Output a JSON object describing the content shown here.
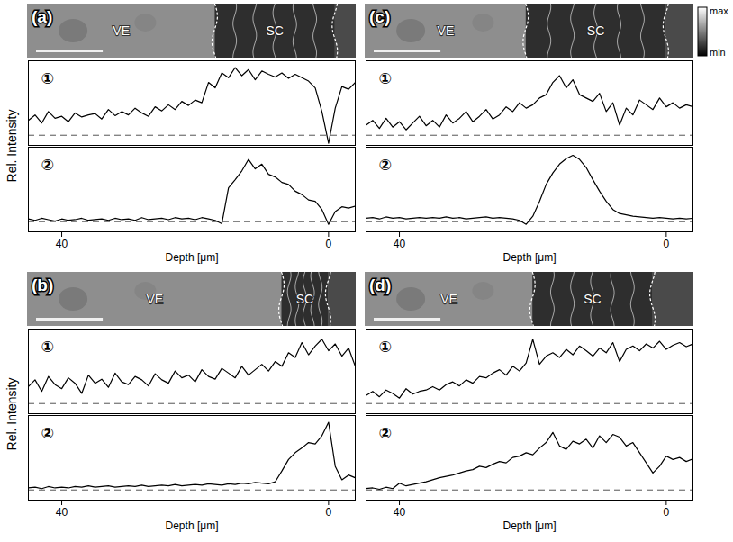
{
  "chart_data": [
    {
      "type": "line",
      "title": "(a)",
      "ylabel": "Rel. Intensity",
      "xlabel": "Depth [μm]",
      "color": "#000000",
      "xlim": [
        45,
        -4
      ],
      "xticks": [
        40,
        0
      ],
      "ylim": [
        -0.15,
        1.1
      ],
      "tick_labels": "x",
      "baseline": 0,
      "regions": [
        {
          "name": "VE"
        },
        {
          "name": "SC",
          "range": [
            17,
            -1
          ]
        }
      ],
      "scale_bar": 10,
      "x": [
        45,
        44,
        43,
        42,
        41,
        40,
        39,
        38,
        37,
        36,
        35,
        34,
        33,
        32,
        31,
        30,
        29,
        28,
        27,
        26,
        25,
        24,
        23,
        22,
        21,
        20,
        19,
        18,
        17,
        16,
        15,
        14,
        13,
        12,
        11,
        10,
        9,
        8,
        7,
        6,
        5,
        4,
        3,
        2,
        1,
        0,
        -1,
        -2,
        -3,
        -4
      ],
      "series": [
        {
          "name": "①",
          "values": [
            0.22,
            0.3,
            0.18,
            0.35,
            0.25,
            0.28,
            0.2,
            0.33,
            0.27,
            0.3,
            0.32,
            0.24,
            0.38,
            0.29,
            0.35,
            0.3,
            0.4,
            0.33,
            0.28,
            0.42,
            0.36,
            0.45,
            0.38,
            0.5,
            0.44,
            0.52,
            0.48,
            0.78,
            0.7,
            0.92,
            0.85,
            1.0,
            0.88,
            0.97,
            0.82,
            0.95,
            0.9,
            0.86,
            0.92,
            0.84,
            0.9,
            0.85,
            0.8,
            0.7,
            0.35,
            -0.12,
            0.4,
            0.72,
            0.68,
            0.78
          ]
        },
        {
          "name": "②",
          "values": [
            0.04,
            0.02,
            0.05,
            0.03,
            0.01,
            0.04,
            0.02,
            0.03,
            0.05,
            0.02,
            0.03,
            0.04,
            0.02,
            0.05,
            0.03,
            0.04,
            0.02,
            0.06,
            0.03,
            0.04,
            0.05,
            0.03,
            0.06,
            0.04,
            0.05,
            0.03,
            0.06,
            0.04,
            0.02,
            -0.03,
            0.5,
            0.62,
            0.75,
            0.92,
            0.78,
            0.85,
            0.7,
            0.66,
            0.58,
            0.55,
            0.45,
            0.4,
            0.32,
            0.3,
            0.18,
            -0.04,
            0.15,
            0.22,
            0.2,
            0.23
          ]
        }
      ]
    },
    {
      "type": "line",
      "title": "(c)",
      "xlabel": "Depth [μm]",
      "color": "#000000",
      "xlim": [
        45,
        -4
      ],
      "xticks": [
        40,
        0
      ],
      "ylim": [
        -0.15,
        1.1
      ],
      "tick_labels": "x",
      "baseline": 0,
      "regions": [
        {
          "name": "VE"
        },
        {
          "name": "SC",
          "range": [
            21,
            0
          ]
        }
      ],
      "scale_bar": 10,
      "x": [
        45,
        44,
        43,
        42,
        41,
        40,
        39,
        38,
        37,
        36,
        35,
        34,
        33,
        32,
        31,
        30,
        29,
        28,
        27,
        26,
        25,
        24,
        23,
        22,
        21,
        20,
        19,
        18,
        17,
        16,
        15,
        14,
        13,
        12,
        11,
        10,
        9,
        8,
        7,
        6,
        5,
        4,
        3,
        2,
        1,
        0,
        -1,
        -2,
        -3,
        -4
      ],
      "series": [
        {
          "name": "①",
          "values": [
            0.15,
            0.22,
            0.1,
            0.25,
            0.12,
            0.2,
            0.08,
            0.18,
            0.28,
            0.14,
            0.22,
            0.12,
            0.3,
            0.18,
            0.25,
            0.35,
            0.2,
            0.28,
            0.38,
            0.24,
            0.3,
            0.42,
            0.35,
            0.48,
            0.4,
            0.45,
            0.55,
            0.6,
            0.78,
            0.88,
            0.7,
            0.82,
            0.6,
            0.55,
            0.5,
            0.62,
            0.35,
            0.48,
            0.15,
            0.4,
            0.3,
            0.52,
            0.45,
            0.38,
            0.55,
            0.42,
            0.48,
            0.4,
            0.45,
            0.42
          ]
        },
        {
          "name": "②",
          "values": [
            0.05,
            0.06,
            0.04,
            0.07,
            0.05,
            0.06,
            0.04,
            0.05,
            0.06,
            0.05,
            0.06,
            0.05,
            0.07,
            0.05,
            0.06,
            0.04,
            0.05,
            0.06,
            0.07,
            0.05,
            0.06,
            0.05,
            0.04,
            0.02,
            -0.04,
            0.08,
            0.3,
            0.55,
            0.72,
            0.85,
            0.93,
            0.98,
            0.92,
            0.8,
            0.62,
            0.45,
            0.3,
            0.18,
            0.12,
            0.1,
            0.08,
            0.07,
            0.06,
            0.05,
            0.06,
            0.05,
            0.04,
            0.05,
            0.04,
            0.05
          ]
        }
      ]
    },
    {
      "type": "line",
      "title": "(b)",
      "ylabel": "Rel. Intensity",
      "xlabel": "Depth [μm]",
      "color": "#000000",
      "xlim": [
        45,
        -4
      ],
      "xticks": [
        40,
        0
      ],
      "ylim": [
        -0.15,
        1.1
      ],
      "tick_labels": "x",
      "baseline": 0,
      "regions": [
        {
          "name": "VE"
        },
        {
          "name": "SC",
          "range": [
            7,
            0
          ]
        }
      ],
      "scale_bar": 10,
      "x": [
        45,
        44,
        43,
        42,
        41,
        40,
        39,
        38,
        37,
        36,
        35,
        34,
        33,
        32,
        31,
        30,
        29,
        28,
        27,
        26,
        25,
        24,
        23,
        22,
        21,
        20,
        19,
        18,
        17,
        16,
        15,
        14,
        13,
        12,
        11,
        10,
        9,
        8,
        7,
        6,
        5,
        4,
        3,
        2,
        1,
        0,
        -1,
        -2,
        -3,
        -4
      ],
      "series": [
        {
          "name": "①",
          "values": [
            0.25,
            0.35,
            0.18,
            0.4,
            0.28,
            0.22,
            0.38,
            0.3,
            0.15,
            0.42,
            0.3,
            0.36,
            0.24,
            0.45,
            0.32,
            0.28,
            0.4,
            0.35,
            0.26,
            0.44,
            0.35,
            0.3,
            0.48,
            0.38,
            0.42,
            0.32,
            0.5,
            0.4,
            0.36,
            0.52,
            0.45,
            0.38,
            0.55,
            0.42,
            0.5,
            0.58,
            0.48,
            0.62,
            0.55,
            0.75,
            0.68,
            0.9,
            0.72,
            0.85,
            0.95,
            0.78,
            0.88,
            0.7,
            0.82,
            0.55
          ]
        },
        {
          "name": "②",
          "values": [
            0.03,
            0.04,
            0.02,
            0.05,
            0.03,
            0.04,
            0.03,
            0.05,
            0.04,
            0.06,
            0.04,
            0.05,
            0.06,
            0.04,
            0.05,
            0.06,
            0.05,
            0.07,
            0.05,
            0.06,
            0.07,
            0.06,
            0.08,
            0.06,
            0.07,
            0.08,
            0.07,
            0.09,
            0.08,
            0.07,
            0.09,
            0.08,
            0.1,
            0.09,
            0.11,
            0.1,
            0.09,
            0.12,
            0.28,
            0.45,
            0.55,
            0.62,
            0.7,
            0.68,
            0.8,
            1.0,
            0.35,
            0.15,
            0.22,
            0.18
          ]
        }
      ]
    },
    {
      "type": "line",
      "title": "(d)",
      "xlabel": "Depth [μm]",
      "color": "#000000",
      "xlim": [
        45,
        -4
      ],
      "xticks": [
        40,
        0
      ],
      "ylim": [
        -0.15,
        1.1
      ],
      "tick_labels": "x",
      "baseline": 0,
      "regions": [
        {
          "name": "VE"
        },
        {
          "name": "SC",
          "range": [
            20,
            2
          ]
        }
      ],
      "scale_bar": 10,
      "x": [
        45,
        44,
        43,
        42,
        41,
        40,
        39,
        38,
        37,
        36,
        35,
        34,
        33,
        32,
        31,
        30,
        29,
        28,
        27,
        26,
        25,
        24,
        23,
        22,
        21,
        20,
        19,
        18,
        17,
        16,
        15,
        14,
        13,
        12,
        11,
        10,
        9,
        8,
        7,
        6,
        5,
        4,
        3,
        2,
        1,
        0,
        -1,
        -2,
        -3,
        -4
      ],
      "series": [
        {
          "name": "①",
          "values": [
            0.12,
            0.18,
            0.1,
            0.2,
            0.15,
            0.08,
            0.22,
            0.14,
            0.18,
            0.2,
            0.25,
            0.2,
            0.28,
            0.32,
            0.26,
            0.35,
            0.3,
            0.4,
            0.38,
            0.45,
            0.5,
            0.42,
            0.55,
            0.48,
            0.6,
            0.95,
            0.58,
            0.7,
            0.75,
            0.68,
            0.8,
            0.72,
            0.85,
            0.78,
            0.7,
            0.82,
            0.75,
            0.9,
            0.62,
            0.8,
            0.85,
            0.78,
            0.88,
            0.82,
            0.92,
            0.8,
            0.86,
            0.9,
            0.84,
            0.88
          ]
        },
        {
          "name": "②",
          "values": [
            0.02,
            0.03,
            0.01,
            0.04,
            0.02,
            0.1,
            0.06,
            0.08,
            0.1,
            0.12,
            0.15,
            0.18,
            0.2,
            0.22,
            0.25,
            0.28,
            0.3,
            0.35,
            0.33,
            0.38,
            0.42,
            0.4,
            0.48,
            0.5,
            0.55,
            0.52,
            0.62,
            0.7,
            0.85,
            0.65,
            0.6,
            0.72,
            0.68,
            0.75,
            0.62,
            0.8,
            0.7,
            0.82,
            0.78,
            0.65,
            0.7,
            0.55,
            0.4,
            0.25,
            0.35,
            0.5,
            0.45,
            0.48,
            0.42,
            0.46
          ]
        }
      ]
    }
  ],
  "colorbar": {
    "top_label": "max",
    "bottom_label": "min"
  }
}
